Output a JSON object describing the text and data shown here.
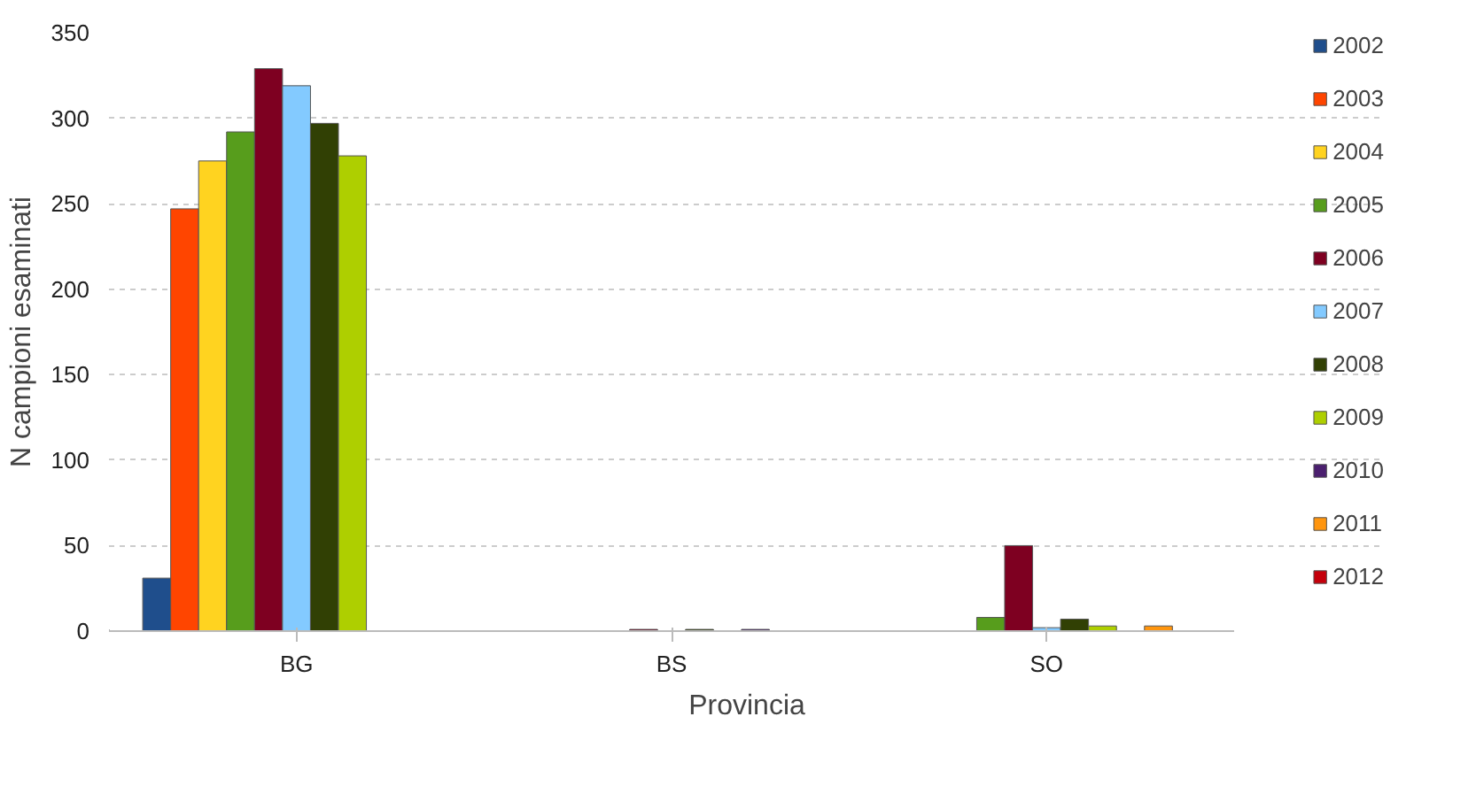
{
  "chart_data": {
    "type": "bar",
    "xlabel": "Provincia",
    "ylabel": "N campioni esaminati",
    "categories": [
      "BG",
      "BS",
      "SO"
    ],
    "series": [
      {
        "name": "2002",
        "color": "#1f4e8c",
        "values": [
          31,
          null,
          null
        ]
      },
      {
        "name": "2003",
        "color": "#ff4500",
        "values": [
          247,
          null,
          null
        ]
      },
      {
        "name": "2004",
        "color": "#ffd320",
        "values": [
          275,
          null,
          null
        ]
      },
      {
        "name": "2005",
        "color": "#579d1c",
        "values": [
          292,
          null,
          8
        ]
      },
      {
        "name": "2006",
        "color": "#7e0021",
        "values": [
          329,
          1,
          50
        ]
      },
      {
        "name": "2007",
        "color": "#83caff",
        "values": [
          319,
          null,
          2
        ]
      },
      {
        "name": "2008",
        "color": "#314004",
        "values": [
          297,
          1,
          7
        ]
      },
      {
        "name": "2009",
        "color": "#aecf00",
        "values": [
          278,
          null,
          3
        ]
      },
      {
        "name": "2010",
        "color": "#4b1f6f",
        "values": [
          null,
          1,
          null
        ]
      },
      {
        "name": "2011",
        "color": "#ff950e",
        "values": [
          null,
          null,
          3
        ]
      },
      {
        "name": "2012",
        "color": "#c5000b",
        "values": [
          null,
          null,
          null
        ]
      }
    ],
    "ylim": [
      0,
      350
    ],
    "yticks": [
      0,
      50,
      100,
      150,
      200,
      250,
      300,
      350
    ],
    "grid": "y",
    "legend": "right"
  }
}
